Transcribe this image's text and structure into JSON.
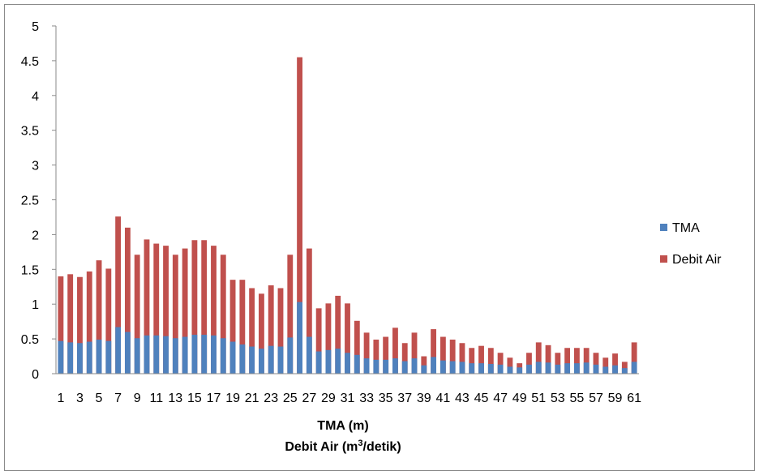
{
  "chart_data": {
    "type": "bar",
    "stacked": false,
    "categories": [
      "1",
      "2",
      "3",
      "4",
      "5",
      "6",
      "7",
      "8",
      "9",
      "10",
      "11",
      "12",
      "13",
      "14",
      "15",
      "16",
      "17",
      "18",
      "19",
      "20",
      "21",
      "22",
      "23",
      "24",
      "25",
      "26",
      "27",
      "28",
      "29",
      "30",
      "31",
      "32",
      "33",
      "34",
      "35",
      "36",
      "37",
      "38",
      "39",
      "40",
      "41",
      "42",
      "43",
      "44",
      "45",
      "46",
      "47",
      "48",
      "49",
      "50",
      "51",
      "52",
      "53",
      "54",
      "55",
      "56",
      "57",
      "58",
      "59",
      "60",
      "61"
    ],
    "series": [
      {
        "name": "TMA",
        "color": "#4f81bd",
        "values": [
          0.47,
          0.45,
          0.44,
          0.46,
          0.49,
          0.47,
          0.67,
          0.6,
          0.51,
          0.55,
          0.55,
          0.54,
          0.51,
          0.53,
          0.56,
          0.56,
          0.55,
          0.51,
          0.46,
          0.42,
          0.39,
          0.36,
          0.4,
          0.39,
          0.52,
          1.03,
          0.53,
          0.32,
          0.34,
          0.36,
          0.3,
          0.27,
          0.22,
          0.2,
          0.2,
          0.22,
          0.18,
          0.22,
          0.12,
          0.24,
          0.19,
          0.18,
          0.17,
          0.15,
          0.15,
          0.14,
          0.13,
          0.1,
          0.09,
          0.13,
          0.17,
          0.16,
          0.13,
          0.15,
          0.15,
          0.16,
          0.13,
          0.1,
          0.12,
          0.08,
          0.17
        ]
      },
      {
        "name": "Debit Air",
        "color": "#c0504d",
        "values": [
          1.4,
          1.43,
          1.39,
          1.47,
          1.63,
          1.51,
          2.26,
          2.1,
          1.71,
          1.93,
          1.87,
          1.84,
          1.71,
          1.8,
          1.92,
          1.92,
          1.84,
          1.71,
          1.35,
          1.35,
          1.23,
          1.15,
          1.27,
          1.23,
          1.71,
          4.55,
          1.8,
          0.94,
          1.01,
          1.12,
          1.01,
          0.76,
          0.59,
          0.49,
          0.53,
          0.66,
          0.44,
          0.59,
          0.25,
          0.64,
          0.53,
          0.49,
          0.44,
          0.37,
          0.4,
          0.37,
          0.3,
          0.23,
          0.15,
          0.3,
          0.45,
          0.41,
          0.3,
          0.37,
          0.37,
          0.37,
          0.3,
          0.23,
          0.29,
          0.17,
          0.45
        ]
      }
    ],
    "xtick_labels": [
      "1",
      "3",
      "5",
      "7",
      "9",
      "11",
      "13",
      "15",
      "17",
      "19",
      "21",
      "23",
      "25",
      "27",
      "29",
      "31",
      "33",
      "35",
      "37",
      "39",
      "41",
      "43",
      "45",
      "47",
      "49",
      "51",
      "53",
      "55",
      "57",
      "59",
      "61"
    ],
    "ylim": [
      0,
      5
    ],
    "ytick_labels": [
      "0",
      "0.5",
      "1",
      "1.5",
      "2",
      "2.5",
      "3",
      "3.5",
      "4",
      "4.5",
      "5"
    ],
    "xlabel_line1": "TMA (m)",
    "xlabel_line2_base": "Debit Air (m",
    "xlabel_line2_sup": "3",
    "xlabel_line2_end": "/detik)",
    "legend_position": "right",
    "grid": false
  }
}
